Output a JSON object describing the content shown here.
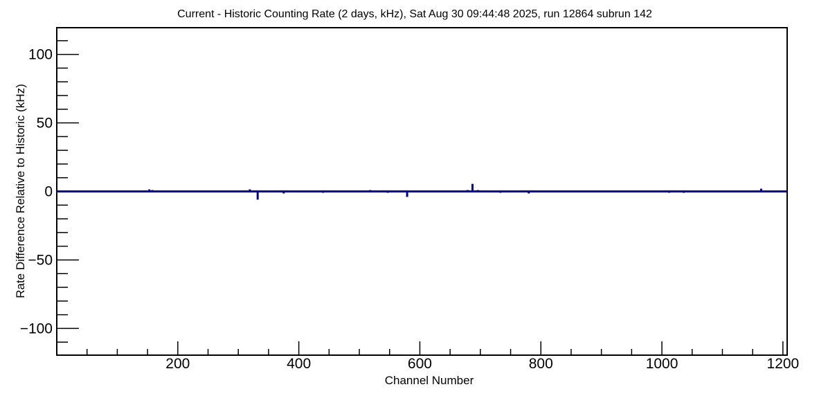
{
  "chart_data": {
    "type": "line",
    "title": "Current - Historic Counting Rate (2 days, kHz), Sat Aug 30 09:44:48 2025, run 12864 subrun 142",
    "xlabel": "Channel Number",
    "ylabel": "Rate Difference Relative to Historic (kHz)",
    "xlim": [
      0,
      1207
    ],
    "ylim": [
      -119.5,
      119.5
    ],
    "x_major_ticks": [
      200,
      400,
      600,
      800,
      1000,
      1200
    ],
    "x_minor_tick_step": 50,
    "y_major_ticks": [
      -100,
      -50,
      0,
      50,
      100
    ],
    "y_minor_tick_step": 10,
    "grid": false,
    "legend": false,
    "background_color": "#ffffff",
    "axis_color": "#000000",
    "line_color": "#000099",
    "baseline_value": 0,
    "spikes": [
      {
        "channel": 153,
        "value": 1.5
      },
      {
        "channel": 158,
        "value": 1.0
      },
      {
        "channel": 319,
        "value": 1.5
      },
      {
        "channel": 332,
        "value": -6.0
      },
      {
        "channel": 375,
        "value": -1.5
      },
      {
        "channel": 440,
        "value": -1.0
      },
      {
        "channel": 518,
        "value": 1.0
      },
      {
        "channel": 547,
        "value": -1.0
      },
      {
        "channel": 579,
        "value": -4.0
      },
      {
        "channel": 679,
        "value": 1.0
      },
      {
        "channel": 687,
        "value": 5.5
      },
      {
        "channel": 696,
        "value": 1.0
      },
      {
        "channel": 733,
        "value": -1.0
      },
      {
        "channel": 780,
        "value": -1.5
      },
      {
        "channel": 1012,
        "value": -1.0
      },
      {
        "channel": 1036,
        "value": -1.0
      },
      {
        "channel": 1164,
        "value": 2.0
      }
    ]
  }
}
